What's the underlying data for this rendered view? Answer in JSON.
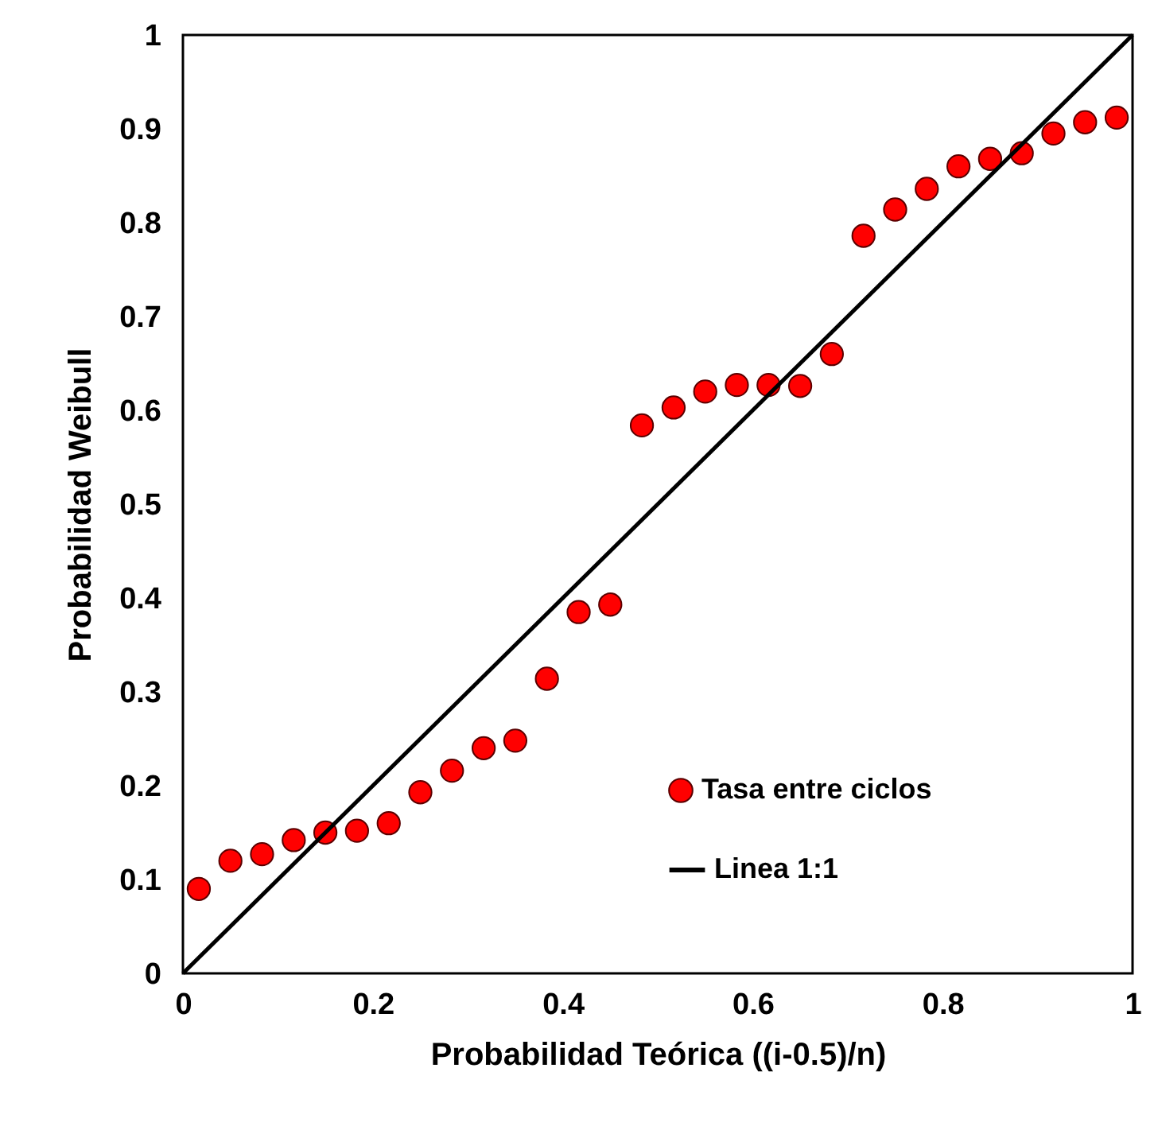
{
  "chart_data": {
    "type": "scatter",
    "xlabel": "Probabilidad Teórica ((i-0.5)/n)",
    "ylabel": "Probabilidad Weibull",
    "xlim": [
      0,
      1
    ],
    "ylim": [
      0,
      1
    ],
    "xticks": [
      0,
      0.2,
      0.4,
      0.6,
      0.8,
      1
    ],
    "yticks": [
      0,
      0.1,
      0.2,
      0.3,
      0.4,
      0.5,
      0.6,
      0.7,
      0.8,
      0.9,
      1
    ],
    "grid": false,
    "legend": "bottom right",
    "series": [
      {
        "name": "Tasa entre ciclos",
        "marker": "circle",
        "color": "#ff0000",
        "x": [
          0.0167,
          0.05,
          0.0833,
          0.1167,
          0.15,
          0.1833,
          0.2167,
          0.25,
          0.2833,
          0.3167,
          0.35,
          0.3833,
          0.4167,
          0.45,
          0.4833,
          0.5167,
          0.55,
          0.5833,
          0.6167,
          0.65,
          0.6833,
          0.7167,
          0.75,
          0.7833,
          0.8167,
          0.85,
          0.8833,
          0.9167,
          0.95,
          0.9833
        ],
        "values": [
          0.09,
          0.12,
          0.127,
          0.142,
          0.15,
          0.152,
          0.16,
          0.193,
          0.216,
          0.24,
          0.248,
          0.314,
          0.385,
          0.393,
          0.584,
          0.603,
          0.62,
          0.627,
          0.627,
          0.626,
          0.66,
          0.786,
          0.814,
          0.836,
          0.86,
          0.868,
          0.874,
          0.895,
          0.907,
          0.912
        ]
      },
      {
        "name": "Linea 1:1",
        "type": "line",
        "color": "#000000",
        "x": [
          0,
          1
        ],
        "values": [
          0,
          1
        ],
        "line_style": "solid",
        "marker": "none"
      }
    ]
  }
}
